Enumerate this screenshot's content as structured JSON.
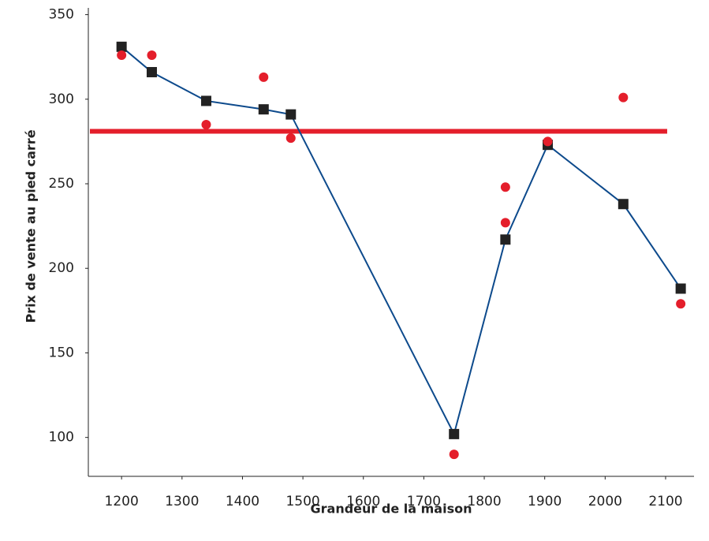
{
  "chart_data": {
    "type": "line",
    "xlabel": "Grandeur de la maison",
    "ylabel": "Prix de vente au pied carré",
    "xlim": [
      1145,
      2147
    ],
    "ylim": [
      77,
      354
    ],
    "xticks": [
      1200,
      1300,
      1400,
      1500,
      1600,
      1700,
      1800,
      1900,
      2000,
      2100
    ],
    "yticks": [
      100,
      150,
      200,
      250,
      300,
      350
    ],
    "hline": 281,
    "hline_color": "#e41e2b",
    "series": [
      {
        "color": "#0d4a8c",
        "marker": "square",
        "marker_color": "#222222",
        "line": true,
        "x": [
          1200,
          1250,
          1340,
          1435,
          1480,
          1750,
          1835,
          1905,
          2030,
          2125
        ],
        "values": [
          331,
          316,
          299,
          294,
          291,
          102,
          217,
          273,
          238,
          188
        ]
      },
      {
        "color": "#e41e2b",
        "marker": "circle",
        "marker_color": "#e41e2b",
        "line": false,
        "x": [
          1200,
          1250,
          1340,
          1435,
          1480,
          1750,
          1835,
          1835,
          1905,
          2030,
          2125
        ],
        "values": [
          326,
          326,
          285,
          313,
          277,
          90,
          248,
          227,
          275,
          301,
          179
        ]
      }
    ]
  }
}
